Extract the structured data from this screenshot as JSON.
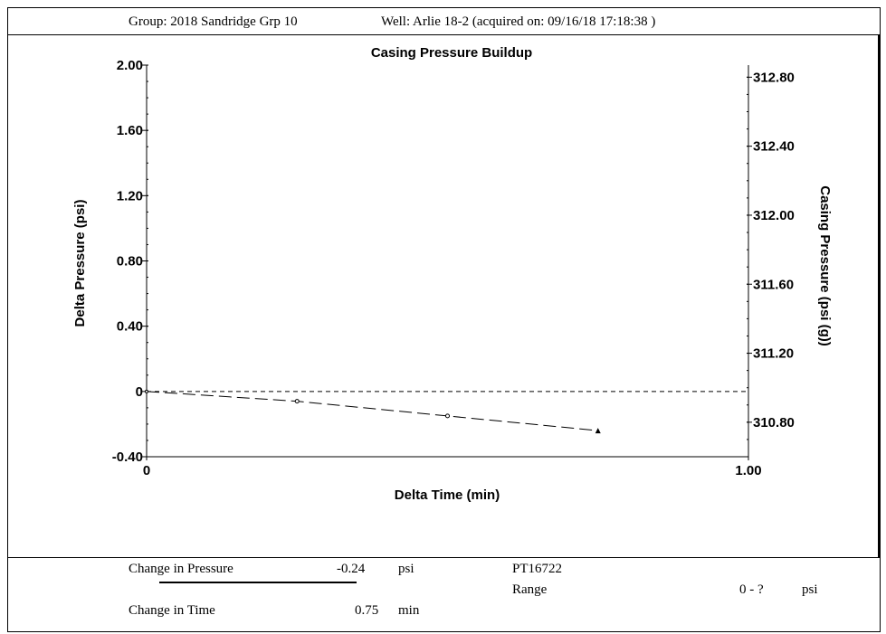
{
  "header": {
    "group_text": "Group: 2018 Sandridge Grp 10",
    "well_text": "Well: Arlie 18-2 (acquired on: 09/16/18 17:18:38 )"
  },
  "chart_data": {
    "type": "line",
    "title": "Casing Pressure Buildup",
    "xlabel": "Delta Time (min)",
    "ylabel": "Delta Pressure (psi)",
    "y2label": "Casing Pressure (psi (g))",
    "xlim": [
      0,
      1.0
    ],
    "ylim": [
      -0.4,
      2.0
    ],
    "y2lim": [
      310.6,
      312.87
    ],
    "x_ticks": [
      {
        "v": 0,
        "label": "0"
      },
      {
        "v": 1.0,
        "label": "1.00"
      }
    ],
    "y_ticks": [
      {
        "v": 2.0,
        "label": "2.00"
      },
      {
        "v": 1.6,
        "label": "1.60"
      },
      {
        "v": 1.2,
        "label": "1.20"
      },
      {
        "v": 0.8,
        "label": "0.80"
      },
      {
        "v": 0.4,
        "label": "0.40"
      },
      {
        "v": 0,
        "label": "0"
      },
      {
        "v": -0.4,
        "label": "-0.40"
      }
    ],
    "y2_ticks": [
      {
        "v": 312.8,
        "label": "312.80"
      },
      {
        "v": 312.4,
        "label": "312.40"
      },
      {
        "v": 312.0,
        "label": "312.00"
      },
      {
        "v": 311.6,
        "label": "311.60"
      },
      {
        "v": 311.2,
        "label": "311.20"
      },
      {
        "v": 310.8,
        "label": "310.80"
      }
    ],
    "reference_line_y": 0,
    "series": [
      {
        "points": [
          {
            "x": 0,
            "y": 0
          },
          {
            "x": 0.25,
            "y": -0.06
          },
          {
            "x": 0.5,
            "y": -0.15
          },
          {
            "x": 0.75,
            "y": -0.24
          }
        ]
      }
    ],
    "grid": false
  },
  "summary": {
    "change_pressure_label": "Change in Pressure",
    "change_pressure_value": "-0.24",
    "change_pressure_unit": "psi",
    "change_time_label": "Change in Time",
    "change_time_value": "0.75",
    "change_time_unit": "min",
    "sensor_id": "PT16722",
    "range_label": "Range",
    "range_value": "0 - ?",
    "range_unit": "psi"
  }
}
